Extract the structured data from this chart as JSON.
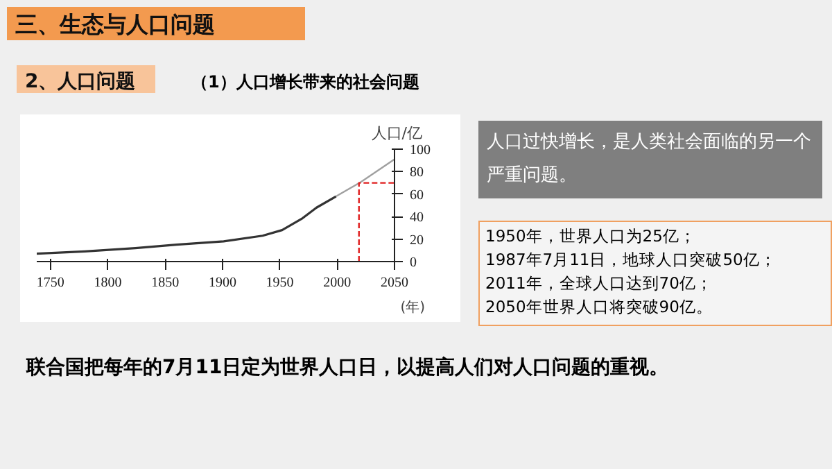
{
  "chart_data": {
    "type": "line",
    "title": "三、生态与人口问题",
    "subtitle": "2、人口问题",
    "xlabel": "(年)",
    "ylabel": "人口/亿",
    "annotations": [
      "（1）人口增长带来的社会问题",
      "人口过快增长，是人类社会面临的另一个严重问题。",
      "1950年，世界人口为25亿；\n1987年7月11日，地球人口突破50亿；\n2011年，全球人口达到70亿；\n2050年世界人口将突破90亿。",
      "联合国把每年的7月11日定为世界人口日，以提高人们对人口问题的重视。"
    ],
    "xlim": [
      1738,
      2050
    ],
    "ylim": [
      0,
      100
    ],
    "xticks": [
      1750,
      1800,
      1850,
      1900,
      1950,
      2000,
      2050
    ],
    "yticks": [
      0,
      20,
      40,
      60,
      80,
      100
    ],
    "grid": false,
    "series": [
      {
        "color": "#333333",
        "x": [
          1738,
          1780,
          1824,
          1860,
          1901,
          1935,
          1952,
          1969,
          1982,
          1999
        ],
        "values": [
          7,
          9,
          12,
          15,
          18,
          23,
          28,
          38,
          48,
          58
        ]
      },
      {
        "color": "#a0a0a0",
        "x": [
          1999,
          2021,
          2050
        ],
        "values": [
          58,
          71,
          91
        ]
      },
      {
        "color": "#e02020",
        "line_style": "dashed",
        "x": [
          2019,
          2019,
          2050
        ],
        "values": [
          0,
          70,
          70
        ]
      }
    ]
  }
}
